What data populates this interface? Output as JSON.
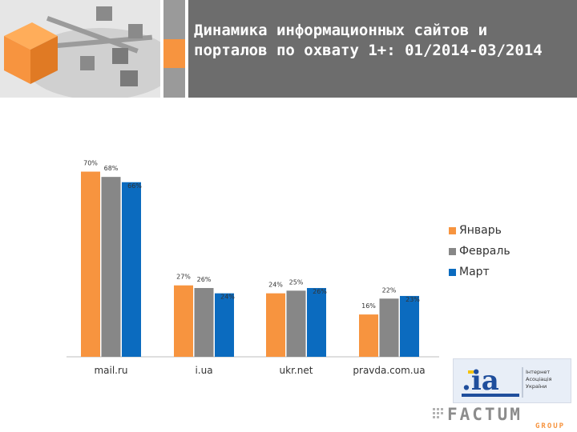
{
  "header": {
    "title": "Динамика информационных сайтов и порталов по охвату 1+: 01/2014-03/2014"
  },
  "chart_data": {
    "type": "bar",
    "title": "Динамика информационных сайтов и порталов по охвату 1+: 01/2014-03/2014",
    "categories": [
      "mail.ru",
      "i.ua",
      "ukr.net",
      "pravda.com.ua"
    ],
    "series": [
      {
        "name": "Январь",
        "color": "#f7943f",
        "values": [
          70,
          27,
          24,
          16
        ]
      },
      {
        "name": "Февраль",
        "color": "#878787",
        "values": [
          68,
          26,
          25,
          22
        ]
      },
      {
        "name": "Март",
        "color": "#0b6bbf",
        "values": [
          66,
          24,
          26,
          23
        ]
      }
    ],
    "ylim": [
      0,
      75
    ],
    "unit": "%",
    "legend_position": "right"
  },
  "logos": {
    "ia_text": ".ia",
    "ia_caption": "Інтернет Асоціація України",
    "factum": "FACTUM",
    "factum_sub": "GROUP"
  }
}
